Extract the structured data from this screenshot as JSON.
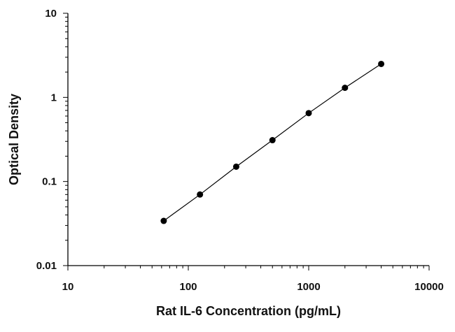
{
  "chart_data": {
    "type": "scatter",
    "title": "",
    "xlabel": "Rat IL-6 Concentration (pg/mL)",
    "ylabel": "Optical Density",
    "x_scale": "log",
    "y_scale": "log",
    "xlim": [
      10,
      10000
    ],
    "ylim": [
      0.01,
      10
    ],
    "x_ticks": [
      "10",
      "100",
      "1000",
      "10000"
    ],
    "y_ticks": [
      "0.01",
      "0.1",
      "1",
      "10"
    ],
    "grid": false,
    "legend": "none",
    "series": [
      {
        "x": [
          62.5,
          125,
          250,
          500,
          1000,
          2000,
          4000
        ],
        "y": [
          0.034,
          0.07,
          0.15,
          0.31,
          0.65,
          1.3,
          2.5
        ],
        "color": "#000000",
        "line": true,
        "marker": "circle"
      }
    ]
  }
}
